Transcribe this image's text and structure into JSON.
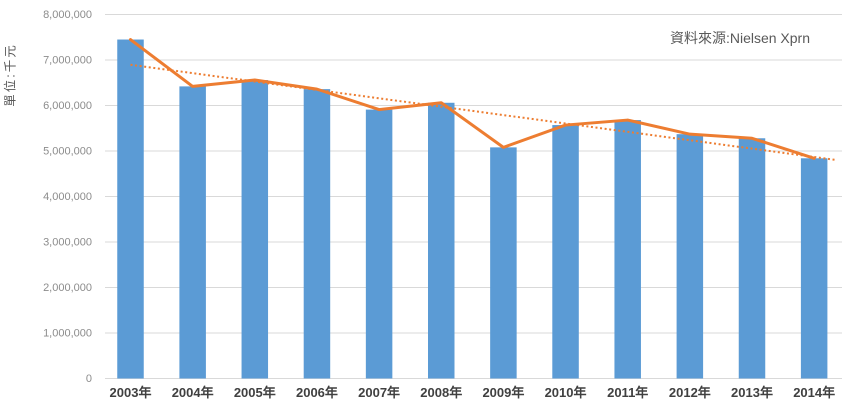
{
  "chart_data": {
    "type": "bar",
    "title": "",
    "ylabel": "單位:千元",
    "annotation": "資料來源:Nielsen Xprn",
    "categories": [
      "2003年",
      "2004年",
      "2005年",
      "2006年",
      "2007年",
      "2008年",
      "2009年",
      "2010年",
      "2011年",
      "2012年",
      "2013年",
      "2014年"
    ],
    "series": [
      {
        "name": "revenue-bars",
        "type": "bar",
        "color": "#5B9BD5",
        "values": [
          7450000,
          6420000,
          6560000,
          6360000,
          5910000,
          6060000,
          5080000,
          5570000,
          5680000,
          5370000,
          5280000,
          4840000
        ]
      },
      {
        "name": "revenue-line",
        "type": "line",
        "color": "#ED7D31",
        "values": [
          7450000,
          6420000,
          6560000,
          6360000,
          5910000,
          6060000,
          5080000,
          5570000,
          5680000,
          5370000,
          5280000,
          4840000
        ]
      },
      {
        "name": "linear-trendline",
        "type": "trendline",
        "style": "dotted",
        "color": "#ED7D31",
        "fit": "linear-regression-of-revenue-bars"
      }
    ],
    "ylim": [
      0,
      8000000
    ],
    "ytick_step": 1000000,
    "grid": true,
    "legend_position": "none",
    "gridline_color": "#D9D9D9",
    "axis_text_color": "#8C8C8C",
    "category_text_color": "#404040"
  }
}
